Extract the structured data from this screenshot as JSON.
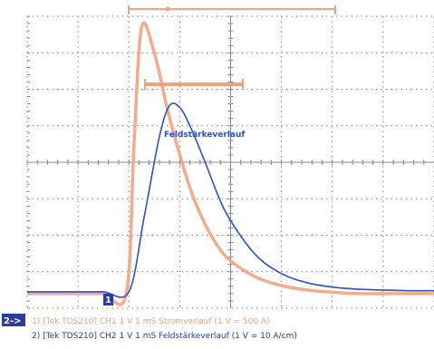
{
  "chart_data": {
    "type": "line",
    "grid": true,
    "x_divisions": 8,
    "y_divisions": 8,
    "series": [
      {
        "name": "Stromverlauf",
        "color": "#f4a27e",
        "x": [
          0,
          1.0,
          1.5,
          1.95,
          2.1,
          2.25,
          2.5,
          2.75,
          3.0,
          3.25,
          3.5,
          3.75,
          4.0,
          4.5,
          5.0,
          5.5,
          6.0,
          6.5,
          7.0,
          7.5,
          8.0
        ],
        "y": [
          -3.6,
          -3.6,
          -3.6,
          -3.6,
          0.5,
          3.7,
          3.0,
          1.5,
          0.2,
          -0.9,
          -1.7,
          -2.3,
          -2.7,
          -3.15,
          -3.38,
          -3.5,
          -3.56,
          -3.6,
          -3.6,
          -3.6,
          -3.6
        ]
      },
      {
        "name": "Feldstärkeverlauf",
        "color": "#2b50c8",
        "x": [
          0,
          1.0,
          1.5,
          2.0,
          2.3,
          2.6,
          2.8,
          3.0,
          3.2,
          3.5,
          3.75,
          4.0,
          4.5,
          5.0,
          5.5,
          6.0,
          6.5,
          7.0,
          7.5,
          8.0
        ],
        "y": [
          -3.55,
          -3.55,
          -3.55,
          -3.55,
          -1.5,
          0.7,
          1.55,
          1.5,
          1.0,
          0.0,
          -0.9,
          -1.6,
          -2.55,
          -3.05,
          -3.3,
          -3.42,
          -3.48,
          -3.5,
          -3.52,
          -3.52
        ]
      }
    ],
    "annotations": {
      "blue_trace_label": "Feldstärkeverlauf",
      "ch1_marker": "1",
      "ch2_marker": "2->"
    },
    "info_lines": [
      "1) [Tek TDS210] CH1 1 V  1 mS Stromverlauf (1 V = 500 A)",
      "2) [Tek TDS210] CH2 1 V  1 mS Feldstärkeverlauf (1 V = 10 A/cm)"
    ]
  },
  "colors": {
    "grid": "#8a8a8a",
    "orange": "#f4a27e",
    "blue": "#2b50c8",
    "ch2_box": "#2a3d9e"
  }
}
